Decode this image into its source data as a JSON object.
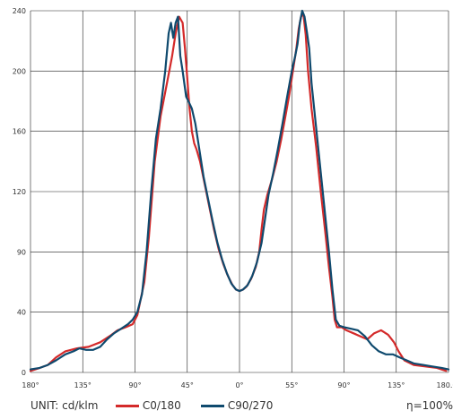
{
  "chart_data": {
    "type": "line",
    "title": "",
    "xlabel": "",
    "ylabel": "",
    "x_ticks": [
      "180°",
      "135°",
      "90°",
      "45°",
      "0°",
      "55°",
      "90°",
      "135°",
      "180.0°"
    ],
    "y_ticks": [
      0,
      40,
      90,
      120,
      160,
      200,
      240
    ],
    "ylim": [
      0,
      240
    ],
    "grid": true,
    "legend": {
      "unit": "UNIT: cd/klm",
      "efficiency": "η=100%",
      "entries": [
        "C0/180",
        "C90/270"
      ]
    },
    "colors": {
      "C0/180": "#d42a2a",
      "C90/270": "#0f4a6e"
    },
    "series": [
      {
        "name": "C0/180",
        "points": [
          [
            -180,
            1
          ],
          [
            -172,
            3
          ],
          [
            -165,
            5
          ],
          [
            -158,
            10
          ],
          [
            -150,
            14
          ],
          [
            -140,
            16
          ],
          [
            -130,
            17
          ],
          [
            -120,
            20
          ],
          [
            -112,
            24
          ],
          [
            -105,
            28
          ],
          [
            -98,
            30
          ],
          [
            -92,
            32
          ],
          [
            -88,
            38
          ],
          [
            -82,
            60
          ],
          [
            -78,
            90
          ],
          [
            -73,
            140
          ],
          [
            -68,
            170
          ],
          [
            -63,
            190
          ],
          [
            -58,
            210
          ],
          [
            -55,
            225
          ],
          [
            -52,
            236
          ],
          [
            -49,
            232
          ],
          [
            -47,
            215
          ],
          [
            -45,
            195
          ],
          [
            -43,
            175
          ],
          [
            -41,
            160
          ],
          [
            -39,
            152
          ],
          [
            -37,
            148
          ],
          [
            -34,
            140
          ],
          [
            -30,
            125
          ],
          [
            -26,
            110
          ],
          [
            -22,
            95
          ],
          [
            -18,
            82
          ],
          [
            -14,
            72
          ],
          [
            -10,
            64
          ],
          [
            -6,
            58
          ],
          [
            -3,
            55
          ],
          [
            0,
            54
          ],
          [
            3,
            55
          ],
          [
            6,
            57
          ],
          [
            10,
            62
          ],
          [
            14,
            70
          ],
          [
            17,
            80
          ],
          [
            19,
            95
          ],
          [
            21,
            108
          ],
          [
            24,
            118
          ],
          [
            28,
            128
          ],
          [
            32,
            140
          ],
          [
            36,
            155
          ],
          [
            40,
            172
          ],
          [
            43,
            185
          ],
          [
            46,
            200
          ],
          [
            49,
            215
          ],
          [
            51,
            228
          ],
          [
            53,
            236
          ],
          [
            55,
            238
          ],
          [
            57,
            224
          ],
          [
            59,
            200
          ],
          [
            62,
            175
          ],
          [
            66,
            150
          ],
          [
            70,
            120
          ],
          [
            74,
            92
          ],
          [
            77,
            70
          ],
          [
            80,
            50
          ],
          [
            82,
            35
          ],
          [
            84,
            30
          ],
          [
            88,
            30
          ],
          [
            92,
            28
          ],
          [
            98,
            26
          ],
          [
            104,
            24
          ],
          [
            110,
            22
          ],
          [
            116,
            26
          ],
          [
            122,
            28
          ],
          [
            128,
            25
          ],
          [
            133,
            20
          ],
          [
            137,
            14
          ],
          [
            142,
            8
          ],
          [
            150,
            5
          ],
          [
            160,
            4
          ],
          [
            170,
            3
          ],
          [
            178,
            1
          ]
        ]
      },
      {
        "name": "C90/270",
        "points": [
          [
            -180,
            2
          ],
          [
            -172,
            3
          ],
          [
            -165,
            5
          ],
          [
            -158,
            8
          ],
          [
            -150,
            12
          ],
          [
            -143,
            14
          ],
          [
            -138,
            16
          ],
          [
            -132,
            15
          ],
          [
            -126,
            15
          ],
          [
            -120,
            17
          ],
          [
            -114,
            22
          ],
          [
            -108,
            26
          ],
          [
            -102,
            29
          ],
          [
            -96,
            32
          ],
          [
            -92,
            35
          ],
          [
            -88,
            40
          ],
          [
            -84,
            52
          ],
          [
            -80,
            80
          ],
          [
            -76,
            120
          ],
          [
            -72,
            155
          ],
          [
            -68,
            175
          ],
          [
            -64,
            200
          ],
          [
            -61,
            225
          ],
          [
            -59,
            232
          ],
          [
            -57,
            222
          ],
          [
            -55,
            232
          ],
          [
            -53,
            236
          ],
          [
            -51,
            210
          ],
          [
            -49,
            200
          ],
          [
            -46,
            183
          ],
          [
            -44,
            180
          ],
          [
            -41,
            175
          ],
          [
            -38,
            165
          ],
          [
            -35,
            150
          ],
          [
            -31,
            130
          ],
          [
            -27,
            115
          ],
          [
            -23,
            100
          ],
          [
            -19,
            86
          ],
          [
            -15,
            75
          ],
          [
            -11,
            66
          ],
          [
            -7,
            59
          ],
          [
            -3,
            55
          ],
          [
            0,
            54
          ],
          [
            3,
            55
          ],
          [
            7,
            58
          ],
          [
            11,
            64
          ],
          [
            15,
            73
          ],
          [
            19,
            86
          ],
          [
            22,
            102
          ],
          [
            25,
            118
          ],
          [
            29,
            132
          ],
          [
            33,
            148
          ],
          [
            37,
            165
          ],
          [
            41,
            183
          ],
          [
            45,
            200
          ],
          [
            48,
            210
          ],
          [
            50,
            218
          ],
          [
            52,
            232
          ],
          [
            54,
            240
          ],
          [
            56,
            236
          ],
          [
            58,
            226
          ],
          [
            60,
            215
          ],
          [
            62,
            192
          ],
          [
            65,
            170
          ],
          [
            69,
            140
          ],
          [
            73,
            110
          ],
          [
            77,
            80
          ],
          [
            80,
            55
          ],
          [
            83,
            35
          ],
          [
            86,
            31
          ],
          [
            90,
            30
          ],
          [
            96,
            29
          ],
          [
            102,
            28
          ],
          [
            108,
            24
          ],
          [
            114,
            18
          ],
          [
            120,
            14
          ],
          [
            126,
            12
          ],
          [
            132,
            12
          ],
          [
            138,
            10
          ],
          [
            144,
            8
          ],
          [
            150,
            6
          ],
          [
            158,
            5
          ],
          [
            166,
            4
          ],
          [
            174,
            3
          ],
          [
            180,
            2
          ]
        ]
      }
    ]
  }
}
